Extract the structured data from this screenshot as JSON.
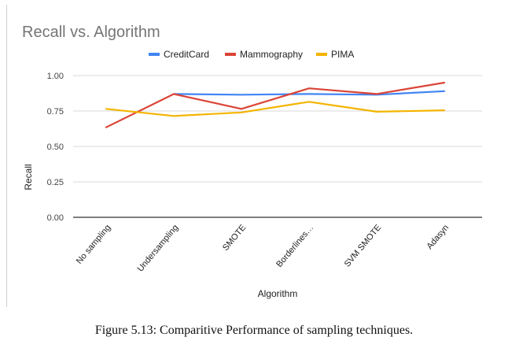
{
  "chart_data": {
    "type": "line",
    "title": "Recall vs. Algorithm",
    "xlabel": "Algorithm",
    "ylabel": "Recall",
    "ylim": [
      0,
      1
    ],
    "yticks": [
      "0.00",
      "0.25",
      "0.50",
      "0.75",
      "1.00"
    ],
    "ytick_values": [
      0,
      0.25,
      0.5,
      0.75,
      1.0
    ],
    "categories": [
      "No sampling",
      "Undersampling",
      "SMOTE",
      "Borderlines…",
      "SVM SMOTE",
      "Adasyn"
    ],
    "legend_position": "top",
    "grid": true,
    "series": [
      {
        "name": "CreditCard",
        "color": "#4285f4",
        "values": [
          null,
          0.87,
          0.865,
          0.87,
          0.865,
          0.89
        ]
      },
      {
        "name": "Mammography",
        "color": "#db4437",
        "values": [
          0.635,
          0.87,
          0.765,
          0.91,
          0.87,
          0.95
        ]
      },
      {
        "name": "PIMA",
        "color": "#f4b400",
        "values": [
          0.765,
          0.715,
          0.74,
          0.815,
          0.745,
          0.755
        ]
      }
    ]
  },
  "caption": "Figure 5.13: Comparitive Performance of sampling techniques."
}
